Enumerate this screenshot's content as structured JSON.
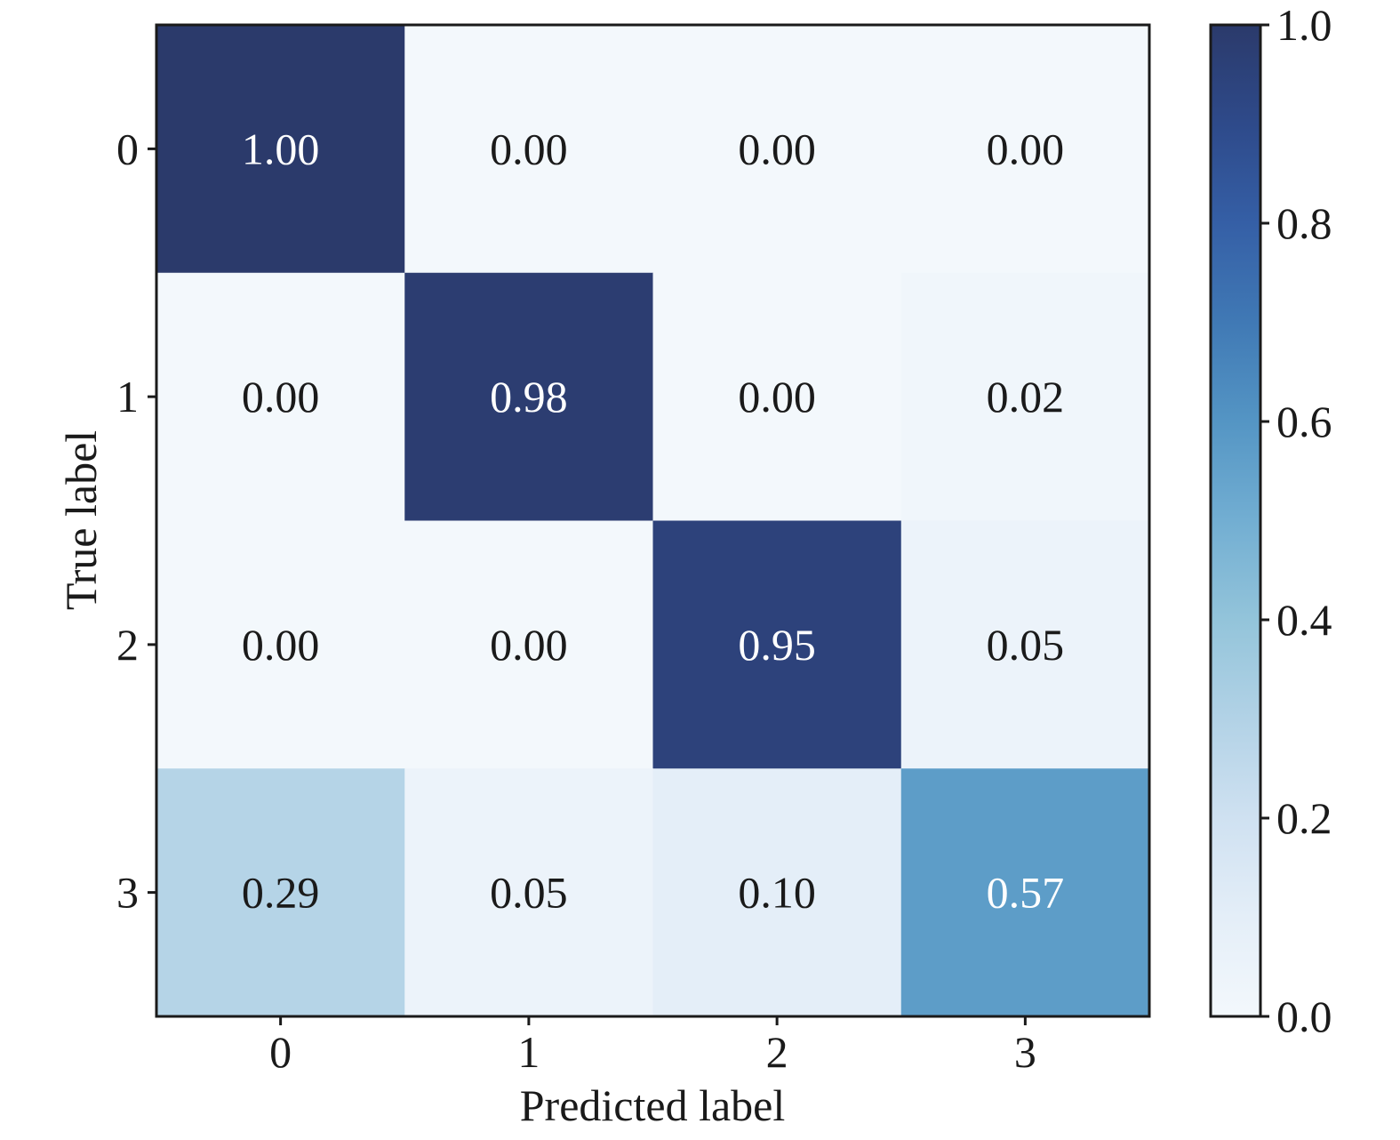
{
  "chart_data": {
    "type": "heatmap",
    "title": "",
    "xlabel": "Predicted label",
    "ylabel": "True label",
    "x_categories": [
      "0",
      "1",
      "2",
      "3"
    ],
    "y_categories": [
      "0",
      "1",
      "2",
      "3"
    ],
    "values": [
      [
        1.0,
        0.0,
        0.0,
        0.0
      ],
      [
        0.0,
        0.98,
        0.0,
        0.02
      ],
      [
        0.0,
        0.0,
        0.95,
        0.05
      ],
      [
        0.29,
        0.05,
        0.1,
        0.57
      ]
    ],
    "value_labels": [
      [
        "1.00",
        "0.00",
        "0.00",
        "0.00"
      ],
      [
        "0.00",
        "0.98",
        "0.00",
        "0.02"
      ],
      [
        "0.00",
        "0.00",
        "0.95",
        "0.05"
      ],
      [
        "0.29",
        "0.05",
        "0.10",
        "0.57"
      ]
    ],
    "colormap": "Blues",
    "colorbar": {
      "range": [
        0.0,
        1.0
      ],
      "ticks": [
        0.0,
        0.2,
        0.4,
        0.6,
        0.8,
        1.0
      ],
      "tick_labels": [
        "0.0",
        "0.2",
        "0.4",
        "0.6",
        "0.8",
        "1.0"
      ]
    },
    "colors": {
      "low": "#f3f8fc",
      "high": "#2b3a6b",
      "text_dark": "#1a1a1a",
      "text_light": "#ffffff"
    },
    "grid": false
  }
}
